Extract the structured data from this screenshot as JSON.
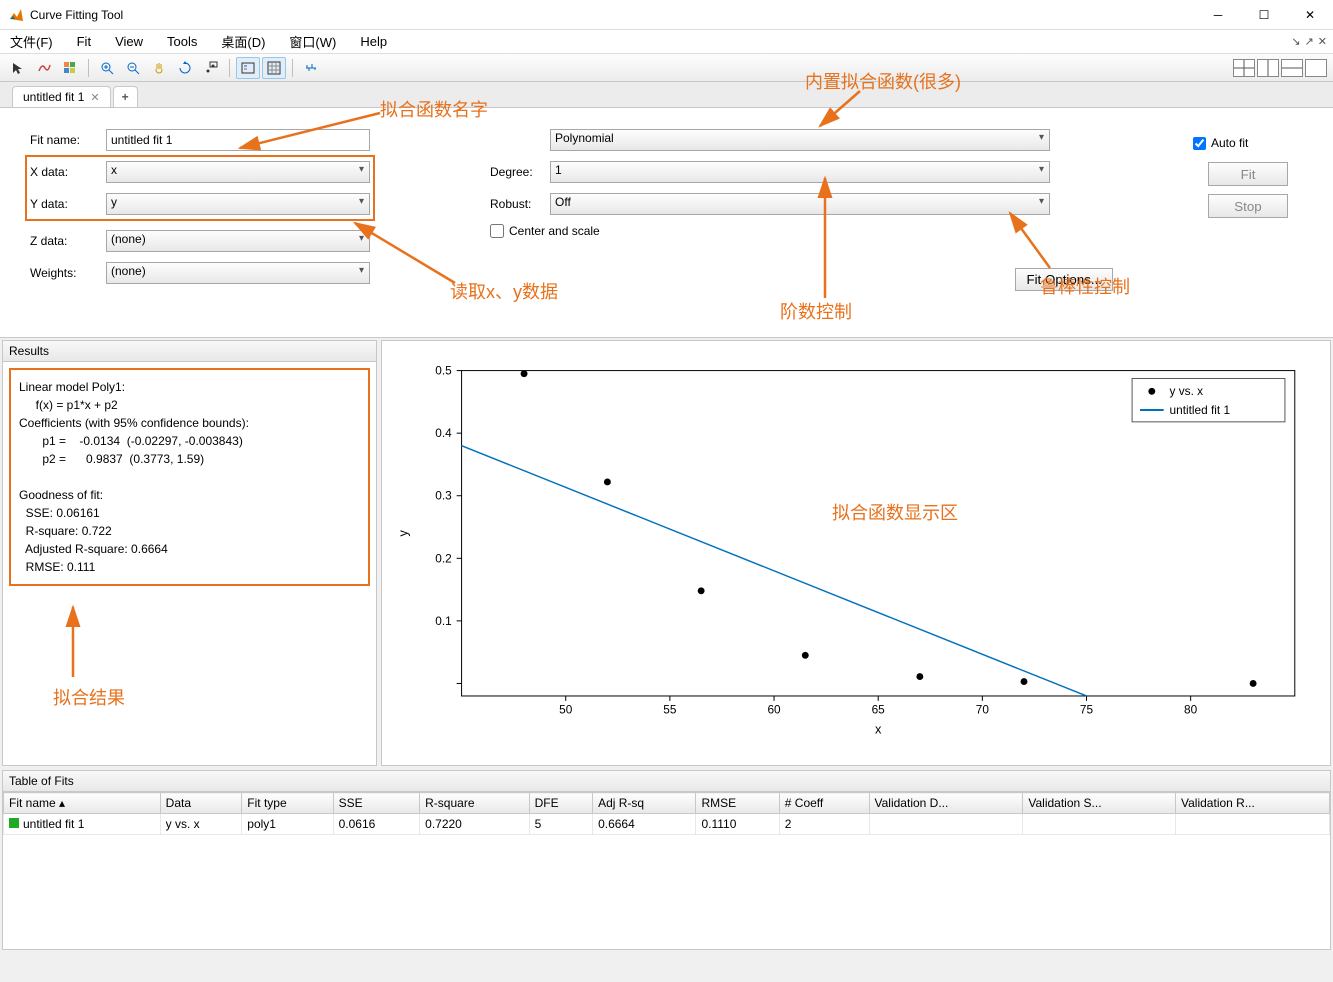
{
  "window": {
    "title": "Curve Fitting Tool"
  },
  "menu": [
    "文件(F)",
    "Fit",
    "View",
    "Tools",
    "桌面(D)",
    "窗口(W)",
    "Help"
  ],
  "tab": {
    "label": "untitled fit 1"
  },
  "form": {
    "fitname_label": "Fit name:",
    "fitname_value": "untitled fit 1",
    "xdata_label": "X data:",
    "xdata_value": "x",
    "ydata_label": "Y data:",
    "ydata_value": "y",
    "zdata_label": "Z data:",
    "zdata_value": "(none)",
    "weights_label": "Weights:",
    "weights_value": "(none)",
    "method_value": "Polynomial",
    "degree_label": "Degree:",
    "degree_value": "1",
    "robust_label": "Robust:",
    "robust_value": "Off",
    "center_scale": "Center and scale",
    "fit_options": "Fit Options...",
    "autofit": "Auto fit",
    "fit_btn": "Fit",
    "stop_btn": "Stop"
  },
  "annotations": {
    "fitname": "拟合函数名字",
    "builtin": "内置拟合函数(很多)",
    "readxy": "读取x、y数据",
    "degree": "阶数控制",
    "robust": "鲁棒性控制",
    "displayarea": "拟合函数显示区",
    "results": "拟合结果"
  },
  "annotation_color": "#e8711c",
  "results": {
    "title": "Results",
    "l1": "Linear model Poly1:",
    "l2": "     f(x) = p1*x + p2",
    "l3": "Coefficients (with 95% confidence bounds):",
    "l4": "       p1 =    -0.0134  (-0.02297, -0.003843)",
    "l5": "       p2 =      0.9837  (0.3773, 1.59)",
    "l6": "",
    "l7": "Goodness of fit:",
    "l8": "  SSE: 0.06161",
    "l9": "  R-square: 0.722",
    "l10": "  Adjusted R-square: 0.6664",
    "l11": "  RMSE: 0.111"
  },
  "chart": {
    "type": "scatter+line",
    "xlabel": "x",
    "ylabel": "y",
    "xlim": [
      45,
      85
    ],
    "ylim": [
      -0.02,
      0.5
    ],
    "xticks": [
      50,
      55,
      60,
      65,
      70,
      75,
      80
    ],
    "yticks": [
      0,
      0.1,
      0.2,
      0.3,
      0.4,
      0.5
    ],
    "scatter_points": [
      [
        48,
        0.495
      ],
      [
        52,
        0.322
      ],
      [
        56.5,
        0.148
      ],
      [
        61.5,
        0.045
      ],
      [
        67,
        0.011
      ],
      [
        72,
        0.003
      ],
      [
        83,
        0.0
      ]
    ],
    "scatter_color": "#000000",
    "line_points": [
      [
        45,
        0.38
      ],
      [
        75,
        -0.02
      ]
    ],
    "line_color": "#0072bd",
    "line_width": 1.5,
    "legend": {
      "series1": "y vs. x",
      "series2": "untitled fit 1"
    },
    "background": "#ffffff",
    "axis_color": "#000000"
  },
  "table": {
    "title": "Table of Fits",
    "headers": [
      "Fit name ▴",
      "Data",
      "Fit type",
      "SSE",
      "R-square",
      "DFE",
      "Adj R-sq",
      "RMSE",
      "# Coeff",
      "Validation D...",
      "Validation S...",
      "Validation R..."
    ],
    "row": [
      "untitled fit 1",
      "y vs. x",
      "poly1",
      "0.0616",
      "0.7220",
      "5",
      "0.6664",
      "0.1110",
      "2",
      "",
      "",
      ""
    ]
  }
}
